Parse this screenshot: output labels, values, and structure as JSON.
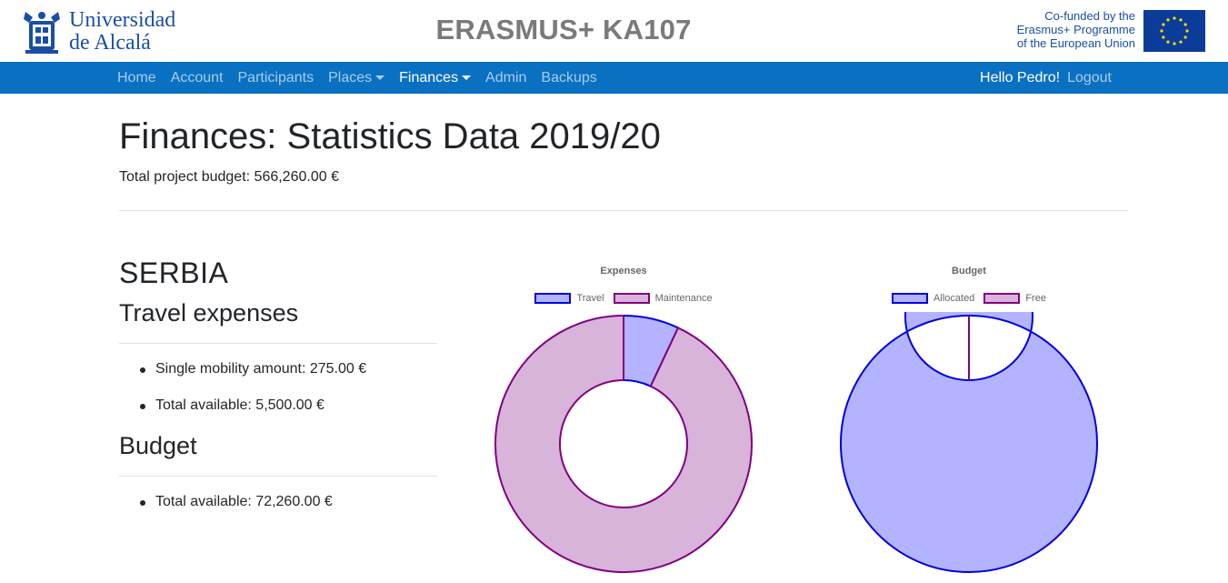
{
  "header": {
    "logo_line1": "Universidad",
    "logo_line2": "de Alcalá",
    "site_title": "ERASMUS+ KA107",
    "cofunded_line1": "Co-funded by the",
    "cofunded_line2": "Erasmus+ Programme",
    "cofunded_line3": "of the European Union",
    "flag_icon": "eu-flag-icon"
  },
  "nav": {
    "items": [
      {
        "label": "Home",
        "active": false,
        "dropdown": false
      },
      {
        "label": "Account",
        "active": false,
        "dropdown": false
      },
      {
        "label": "Participants",
        "active": false,
        "dropdown": false
      },
      {
        "label": "Places",
        "active": false,
        "dropdown": true
      },
      {
        "label": "Finances",
        "active": true,
        "dropdown": true
      },
      {
        "label": "Admin",
        "active": false,
        "dropdown": false
      },
      {
        "label": "Backups",
        "active": false,
        "dropdown": false
      }
    ],
    "greeting": "Hello Pedro!",
    "logout": "Logout"
  },
  "main": {
    "title": "Finances: Statistics Data 2019/20",
    "total_budget": "Total project budget: 566,260.00 €",
    "country": "SERBIA",
    "travel_title": "Travel expenses",
    "travel_items": [
      "Single mobility amount: 275.00 €",
      "Total available: 5,500.00 €"
    ],
    "budget_title": "Budget",
    "budget_items": [
      "Total available: 72,260.00 €"
    ]
  },
  "colors": {
    "brand": "#0a70c2",
    "series1_fill": "#b3b3ff",
    "series1_border": "#0000dd",
    "series2_fill": "#d8b3da",
    "series2_border": "#800080"
  },
  "chart_data": [
    {
      "type": "doughnut",
      "title": "Expenses",
      "legend_position": "top",
      "categories": [
        "Travel",
        "Maintenance"
      ],
      "values": [
        7,
        93
      ]
    },
    {
      "type": "doughnut",
      "title": "Budget",
      "legend_position": "top",
      "categories": [
        "Allocated",
        "Free"
      ],
      "values": [
        100,
        0
      ]
    }
  ]
}
